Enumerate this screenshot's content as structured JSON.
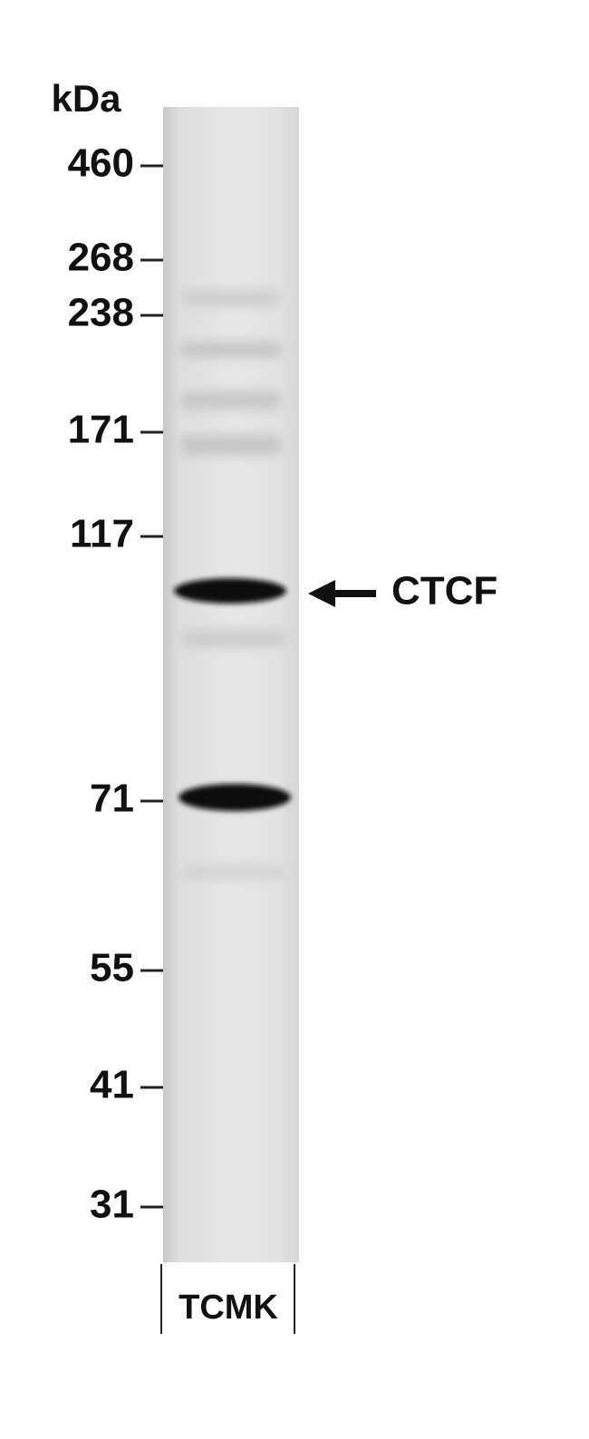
{
  "unit_label": "kDa",
  "markers": [
    "460",
    "268",
    "238",
    "171",
    "117",
    "71",
    "55",
    "41",
    "31"
  ],
  "band_label": "CTCF",
  "lane_label": "TCMK"
}
